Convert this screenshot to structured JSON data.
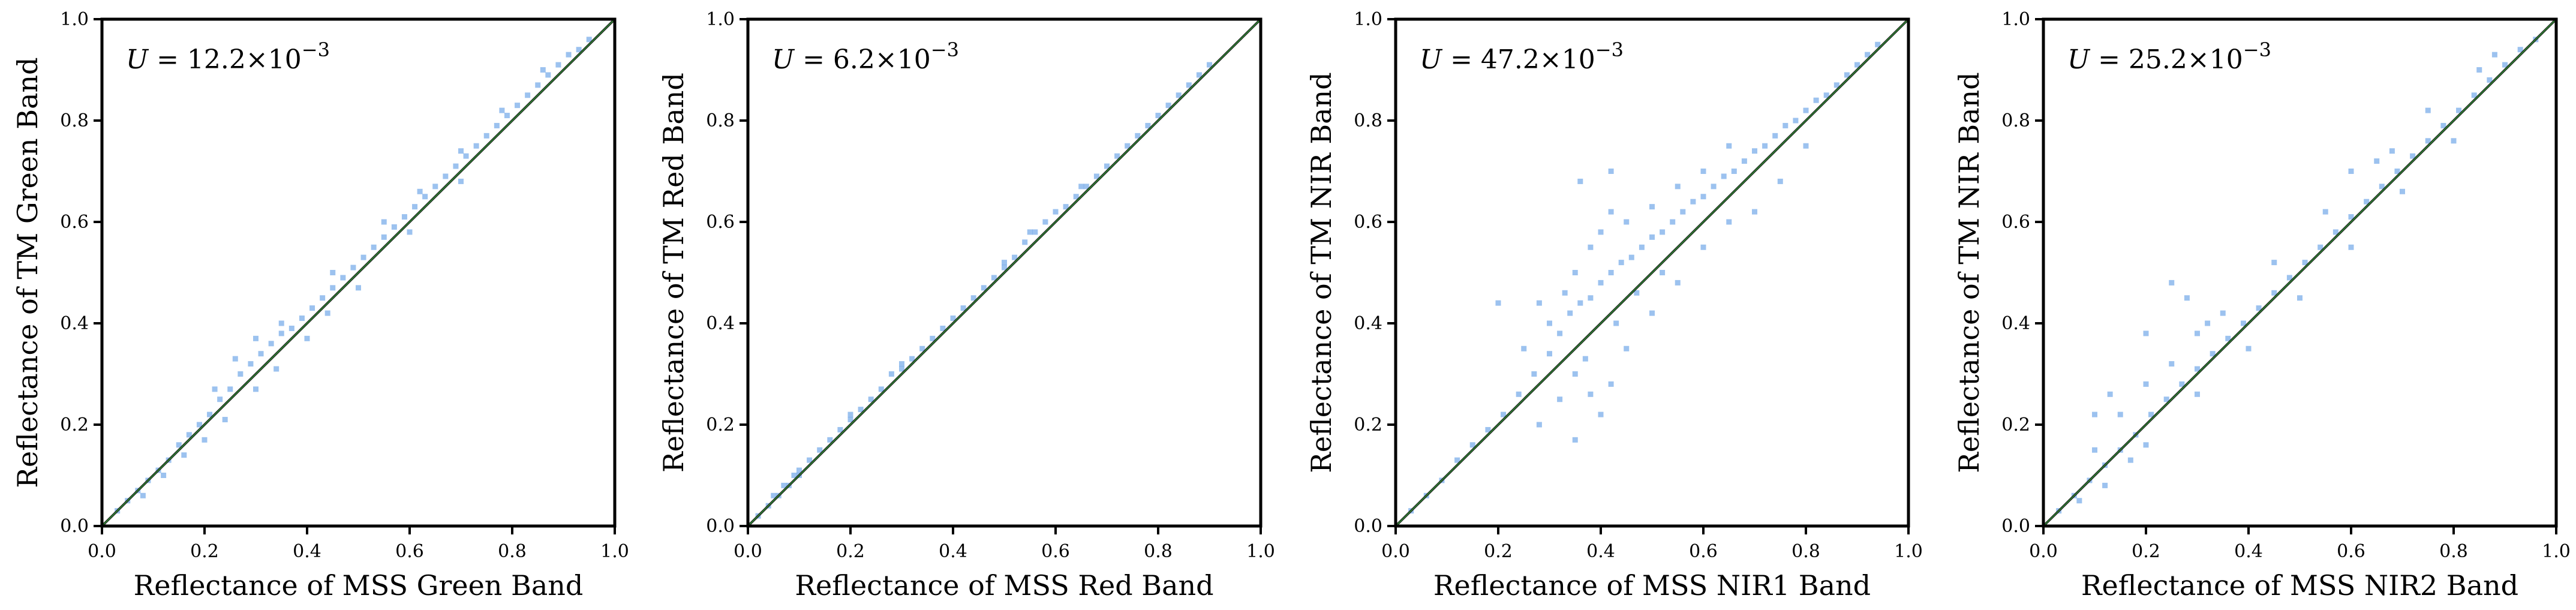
{
  "colors": {
    "hist": "#4a90e2",
    "line": "#1a1a1a",
    "line_accent": "#2e7d32"
  },
  "chart_data": [
    {
      "type": "scatter",
      "title": "",
      "xlabel": "Reflectance of MSS Green Band",
      "ylabel": "Reflectance of TM Green Band",
      "annotation": {
        "lhs": "U",
        "eq": " = 12.2×10",
        "exp": "−3"
      },
      "xlim": [
        0,
        1
      ],
      "ylim": [
        0,
        1
      ],
      "xticks": [
        "0.0",
        "0.2",
        "0.4",
        "0.6",
        "0.8",
        "1.0"
      ],
      "yticks": [
        "0.0",
        "0.2",
        "0.4",
        "0.6",
        "0.8",
        "1.0"
      ],
      "reference_line": [
        [
          0,
          0
        ],
        [
          1,
          1
        ]
      ],
      "points": [
        [
          0.03,
          0.03
        ],
        [
          0.05,
          0.05
        ],
        [
          0.07,
          0.07
        ],
        [
          0.09,
          0.09
        ],
        [
          0.11,
          0.11
        ],
        [
          0.13,
          0.13
        ],
        [
          0.15,
          0.16
        ],
        [
          0.17,
          0.18
        ],
        [
          0.19,
          0.2
        ],
        [
          0.21,
          0.22
        ],
        [
          0.23,
          0.25
        ],
        [
          0.25,
          0.27
        ],
        [
          0.27,
          0.3
        ],
        [
          0.29,
          0.32
        ],
        [
          0.31,
          0.34
        ],
        [
          0.33,
          0.36
        ],
        [
          0.35,
          0.38
        ],
        [
          0.37,
          0.39
        ],
        [
          0.39,
          0.41
        ],
        [
          0.41,
          0.43
        ],
        [
          0.43,
          0.45
        ],
        [
          0.45,
          0.47
        ],
        [
          0.47,
          0.49
        ],
        [
          0.49,
          0.51
        ],
        [
          0.51,
          0.53
        ],
        [
          0.53,
          0.55
        ],
        [
          0.55,
          0.57
        ],
        [
          0.57,
          0.59
        ],
        [
          0.59,
          0.61
        ],
        [
          0.61,
          0.63
        ],
        [
          0.63,
          0.65
        ],
        [
          0.65,
          0.67
        ],
        [
          0.67,
          0.69
        ],
        [
          0.69,
          0.71
        ],
        [
          0.71,
          0.73
        ],
        [
          0.73,
          0.75
        ],
        [
          0.75,
          0.77
        ],
        [
          0.77,
          0.79
        ],
        [
          0.79,
          0.81
        ],
        [
          0.81,
          0.83
        ],
        [
          0.83,
          0.85
        ],
        [
          0.85,
          0.87
        ],
        [
          0.87,
          0.89
        ],
        [
          0.89,
          0.91
        ],
        [
          0.91,
          0.93
        ],
        [
          0.93,
          0.94
        ],
        [
          0.95,
          0.96
        ],
        [
          0.22,
          0.27
        ],
        [
          0.26,
          0.33
        ],
        [
          0.3,
          0.37
        ],
        [
          0.35,
          0.4
        ],
        [
          0.45,
          0.5
        ],
        [
          0.55,
          0.6
        ],
        [
          0.62,
          0.66
        ],
        [
          0.7,
          0.74
        ],
        [
          0.78,
          0.82
        ],
        [
          0.86,
          0.9
        ],
        [
          0.2,
          0.17
        ],
        [
          0.3,
          0.27
        ],
        [
          0.4,
          0.37
        ],
        [
          0.5,
          0.47
        ],
        [
          0.6,
          0.58
        ],
        [
          0.7,
          0.68
        ],
        [
          0.08,
          0.06
        ],
        [
          0.12,
          0.1
        ],
        [
          0.16,
          0.14
        ],
        [
          0.24,
          0.21
        ],
        [
          0.34,
          0.31
        ],
        [
          0.44,
          0.42
        ]
      ]
    },
    {
      "type": "scatter",
      "title": "",
      "xlabel": "Reflectance of MSS Red Band",
      "ylabel": "Reflectance of TM Red Band",
      "annotation": {
        "lhs": "U",
        "eq": " = 6.2×10",
        "exp": "−3"
      },
      "xlim": [
        0,
        1
      ],
      "ylim": [
        0,
        1
      ],
      "xticks": [
        "0.0",
        "0.2",
        "0.4",
        "0.6",
        "0.8",
        "1.0"
      ],
      "yticks": [
        "0.0",
        "0.2",
        "0.4",
        "0.6",
        "0.8",
        "1.0"
      ],
      "reference_line": [
        [
          0,
          0
        ],
        [
          1,
          1
        ]
      ],
      "points": [
        [
          0.02,
          0.02
        ],
        [
          0.04,
          0.04
        ],
        [
          0.06,
          0.06
        ],
        [
          0.08,
          0.08
        ],
        [
          0.1,
          0.1
        ],
        [
          0.12,
          0.13
        ],
        [
          0.14,
          0.15
        ],
        [
          0.16,
          0.17
        ],
        [
          0.18,
          0.19
        ],
        [
          0.2,
          0.21
        ],
        [
          0.22,
          0.23
        ],
        [
          0.24,
          0.25
        ],
        [
          0.26,
          0.27
        ],
        [
          0.28,
          0.3
        ],
        [
          0.3,
          0.32
        ],
        [
          0.32,
          0.33
        ],
        [
          0.34,
          0.35
        ],
        [
          0.36,
          0.37
        ],
        [
          0.38,
          0.39
        ],
        [
          0.4,
          0.41
        ],
        [
          0.42,
          0.43
        ],
        [
          0.44,
          0.45
        ],
        [
          0.46,
          0.47
        ],
        [
          0.48,
          0.49
        ],
        [
          0.5,
          0.51
        ],
        [
          0.52,
          0.53
        ],
        [
          0.54,
          0.56
        ],
        [
          0.56,
          0.58
        ],
        [
          0.58,
          0.6
        ],
        [
          0.6,
          0.62
        ],
        [
          0.62,
          0.63
        ],
        [
          0.64,
          0.65
        ],
        [
          0.66,
          0.67
        ],
        [
          0.68,
          0.69
        ],
        [
          0.7,
          0.71
        ],
        [
          0.72,
          0.73
        ],
        [
          0.74,
          0.75
        ],
        [
          0.76,
          0.77
        ],
        [
          0.78,
          0.79
        ],
        [
          0.8,
          0.81
        ],
        [
          0.82,
          0.83
        ],
        [
          0.84,
          0.85
        ],
        [
          0.86,
          0.87
        ],
        [
          0.88,
          0.89
        ],
        [
          0.9,
          0.91
        ],
        [
          0.1,
          0.11
        ],
        [
          0.2,
          0.22
        ],
        [
          0.3,
          0.31
        ],
        [
          0.5,
          0.52
        ],
        [
          0.55,
          0.58
        ],
        [
          0.65,
          0.67
        ],
        [
          0.05,
          0.06
        ],
        [
          0.07,
          0.08
        ],
        [
          0.09,
          0.1
        ]
      ]
    },
    {
      "type": "scatter",
      "title": "",
      "xlabel": "Reflectance of MSS NIR1 Band",
      "ylabel": "Reflectance of TM NIR Band",
      "annotation": {
        "lhs": "U",
        "eq": " = 47.2×10",
        "exp": "−3"
      },
      "xlim": [
        0,
        1
      ],
      "ylim": [
        0,
        1
      ],
      "xticks": [
        "0.0",
        "0.2",
        "0.4",
        "0.6",
        "0.8",
        "1.0"
      ],
      "yticks": [
        "0.0",
        "0.2",
        "0.4",
        "0.6",
        "0.8",
        "1.0"
      ],
      "reference_line": [
        [
          0,
          0
        ],
        [
          1,
          1
        ]
      ],
      "points": [
        [
          0.03,
          0.03
        ],
        [
          0.06,
          0.06
        ],
        [
          0.09,
          0.09
        ],
        [
          0.12,
          0.13
        ],
        [
          0.15,
          0.16
        ],
        [
          0.18,
          0.19
        ],
        [
          0.21,
          0.22
        ],
        [
          0.24,
          0.26
        ],
        [
          0.27,
          0.3
        ],
        [
          0.3,
          0.34
        ],
        [
          0.32,
          0.38
        ],
        [
          0.34,
          0.42
        ],
        [
          0.36,
          0.44
        ],
        [
          0.38,
          0.45
        ],
        [
          0.4,
          0.48
        ],
        [
          0.42,
          0.5
        ],
        [
          0.44,
          0.52
        ],
        [
          0.46,
          0.53
        ],
        [
          0.48,
          0.55
        ],
        [
          0.5,
          0.57
        ],
        [
          0.52,
          0.58
        ],
        [
          0.54,
          0.6
        ],
        [
          0.56,
          0.62
        ],
        [
          0.58,
          0.64
        ],
        [
          0.6,
          0.65
        ],
        [
          0.62,
          0.67
        ],
        [
          0.64,
          0.69
        ],
        [
          0.66,
          0.7
        ],
        [
          0.68,
          0.72
        ],
        [
          0.7,
          0.74
        ],
        [
          0.72,
          0.75
        ],
        [
          0.74,
          0.77
        ],
        [
          0.76,
          0.79
        ],
        [
          0.78,
          0.8
        ],
        [
          0.8,
          0.82
        ],
        [
          0.82,
          0.84
        ],
        [
          0.84,
          0.85
        ],
        [
          0.86,
          0.87
        ],
        [
          0.88,
          0.89
        ],
        [
          0.9,
          0.91
        ],
        [
          0.92,
          0.93
        ],
        [
          0.94,
          0.95
        ],
        [
          0.3,
          0.4
        ],
        [
          0.33,
          0.46
        ],
        [
          0.35,
          0.5
        ],
        [
          0.38,
          0.55
        ],
        [
          0.4,
          0.58
        ],
        [
          0.42,
          0.62
        ],
        [
          0.45,
          0.6
        ],
        [
          0.5,
          0.63
        ],
        [
          0.55,
          0.67
        ],
        [
          0.6,
          0.7
        ],
        [
          0.65,
          0.75
        ],
        [
          0.36,
          0.68
        ],
        [
          0.42,
          0.7
        ],
        [
          0.28,
          0.44
        ],
        [
          0.25,
          0.35
        ],
        [
          0.2,
          0.44
        ],
        [
          0.35,
          0.3
        ],
        [
          0.38,
          0.26
        ],
        [
          0.4,
          0.22
        ],
        [
          0.42,
          0.28
        ],
        [
          0.45,
          0.35
        ],
        [
          0.5,
          0.42
        ],
        [
          0.55,
          0.48
        ],
        [
          0.6,
          0.55
        ],
        [
          0.65,
          0.6
        ],
        [
          0.7,
          0.62
        ],
        [
          0.75,
          0.68
        ],
        [
          0.8,
          0.75
        ],
        [
          0.35,
          0.17
        ],
        [
          0.28,
          0.2
        ],
        [
          0.32,
          0.25
        ],
        [
          0.37,
          0.33
        ],
        [
          0.43,
          0.4
        ],
        [
          0.47,
          0.46
        ],
        [
          0.52,
          0.5
        ]
      ]
    },
    {
      "type": "scatter",
      "title": "",
      "xlabel": "Reflectance of MSS NIR2 Band",
      "ylabel": "Reflectance of TM NIR Band",
      "annotation": {
        "lhs": "U",
        "eq": " = 25.2×10",
        "exp": "−3"
      },
      "xlim": [
        0,
        1
      ],
      "ylim": [
        0,
        1
      ],
      "xticks": [
        "0.0",
        "0.2",
        "0.4",
        "0.6",
        "0.8",
        "1.0"
      ],
      "yticks": [
        "0.0",
        "0.2",
        "0.4",
        "0.6",
        "0.8",
        "1.0"
      ],
      "reference_line": [
        [
          0,
          0
        ],
        [
          1,
          1
        ]
      ],
      "points": [
        [
          0.03,
          0.03
        ],
        [
          0.06,
          0.06
        ],
        [
          0.09,
          0.09
        ],
        [
          0.12,
          0.12
        ],
        [
          0.15,
          0.15
        ],
        [
          0.18,
          0.18
        ],
        [
          0.21,
          0.22
        ],
        [
          0.24,
          0.25
        ],
        [
          0.27,
          0.28
        ],
        [
          0.3,
          0.31
        ],
        [
          0.33,
          0.34
        ],
        [
          0.36,
          0.37
        ],
        [
          0.39,
          0.4
        ],
        [
          0.42,
          0.43
        ],
        [
          0.45,
          0.46
        ],
        [
          0.48,
          0.49
        ],
        [
          0.51,
          0.52
        ],
        [
          0.54,
          0.55
        ],
        [
          0.57,
          0.58
        ],
        [
          0.6,
          0.61
        ],
        [
          0.63,
          0.64
        ],
        [
          0.66,
          0.67
        ],
        [
          0.69,
          0.7
        ],
        [
          0.72,
          0.73
        ],
        [
          0.75,
          0.76
        ],
        [
          0.78,
          0.79
        ],
        [
          0.81,
          0.82
        ],
        [
          0.84,
          0.85
        ],
        [
          0.87,
          0.88
        ],
        [
          0.9,
          0.91
        ],
        [
          0.93,
          0.94
        ],
        [
          0.96,
          0.96
        ],
        [
          0.1,
          0.15
        ],
        [
          0.15,
          0.22
        ],
        [
          0.2,
          0.28
        ],
        [
          0.25,
          0.32
        ],
        [
          0.3,
          0.38
        ],
        [
          0.35,
          0.42
        ],
        [
          0.45,
          0.52
        ],
        [
          0.55,
          0.62
        ],
        [
          0.65,
          0.72
        ],
        [
          0.75,
          0.82
        ],
        [
          0.85,
          0.9
        ],
        [
          0.2,
          0.16
        ],
        [
          0.3,
          0.26
        ],
        [
          0.4,
          0.35
        ],
        [
          0.5,
          0.45
        ],
        [
          0.6,
          0.55
        ],
        [
          0.7,
          0.66
        ],
        [
          0.8,
          0.76
        ],
        [
          0.07,
          0.05
        ],
        [
          0.12,
          0.08
        ],
        [
          0.17,
          0.13
        ],
        [
          0.25,
          0.48
        ],
        [
          0.2,
          0.38
        ],
        [
          0.13,
          0.26
        ],
        [
          0.1,
          0.22
        ],
        [
          0.28,
          0.45
        ],
        [
          0.32,
          0.4
        ],
        [
          0.6,
          0.7
        ],
        [
          0.68,
          0.74
        ],
        [
          0.88,
          0.93
        ]
      ]
    }
  ]
}
